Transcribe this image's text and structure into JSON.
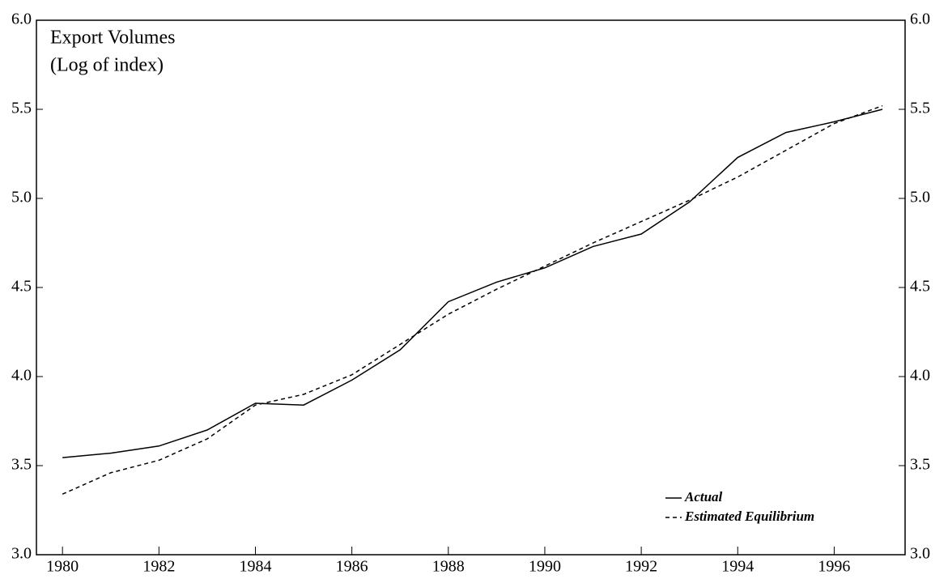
{
  "chart_data": {
    "type": "line",
    "title": [
      "Export Volumes",
      "(Log of index)"
    ],
    "x": [
      1980,
      1981,
      1982,
      1983,
      1984,
      1985,
      1986,
      1987,
      1988,
      1989,
      1990,
      1991,
      1992,
      1993,
      1994,
      1995,
      1996,
      1997
    ],
    "series": [
      {
        "name": "Actual",
        "color": "#000000",
        "dash": "solid",
        "values": [
          3.545,
          3.57,
          3.61,
          3.7,
          3.85,
          3.84,
          3.98,
          4.15,
          4.42,
          4.53,
          4.61,
          4.73,
          4.8,
          4.98,
          5.23,
          5.37,
          5.43,
          5.5
        ]
      },
      {
        "name": "Estimated Equilibrium",
        "color": "#000000",
        "dash": "dashed",
        "values": [
          3.34,
          3.46,
          3.53,
          3.65,
          3.84,
          3.9,
          4.01,
          4.18,
          4.35,
          4.49,
          4.62,
          4.75,
          4.87,
          4.99,
          5.12,
          5.27,
          5.42,
          5.52
        ]
      }
    ],
    "xlim": [
      1979.46,
      1997.47
    ],
    "xticks": [
      1980,
      1982,
      1984,
      1986,
      1988,
      1990,
      1992,
      1994,
      1996
    ],
    "ylim": [
      3.0,
      6.0
    ],
    "yticks": [
      {
        "value": 3.0,
        "label": "3.0"
      },
      3.5,
      {
        "value": 4.0,
        "label": "4.0"
      },
      4.5,
      {
        "value": 5.0,
        "label": "5.0"
      },
      5.5,
      {
        "value": 6.0,
        "label": "6.0"
      }
    ],
    "legend": "lower right"
  }
}
